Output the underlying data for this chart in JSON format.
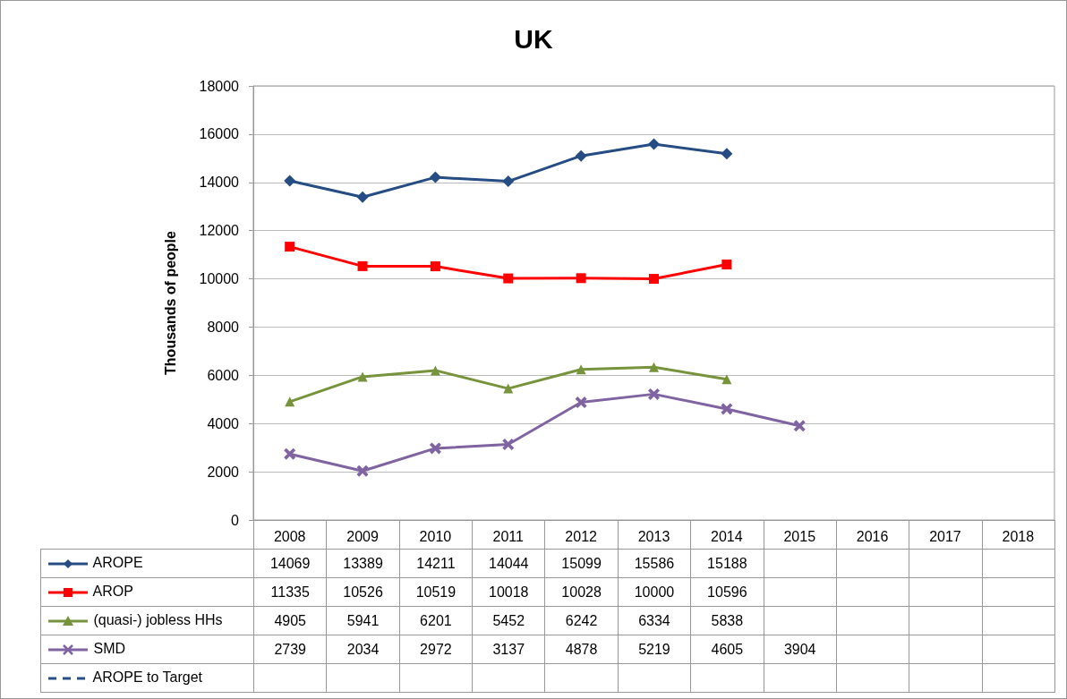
{
  "chart_data": {
    "type": "line",
    "title": "UK",
    "ylabel": "Thousands of people",
    "categories": [
      "2008",
      "2009",
      "2010",
      "2011",
      "2012",
      "2013",
      "2014",
      "2015",
      "2016",
      "2017",
      "2018"
    ],
    "ylim": [
      0,
      18000
    ],
    "yticks": [
      0,
      2000,
      4000,
      6000,
      8000,
      10000,
      12000,
      14000,
      16000,
      18000
    ],
    "grid": "y",
    "legend": "bottom left",
    "data_labels": true,
    "series": [
      {
        "name": "AROPE",
        "color": "#264c84",
        "marker": "diamond",
        "line_style": "solid",
        "values": [
          14069,
          13389,
          14211,
          14044,
          15099,
          15586,
          15188,
          null,
          null,
          null,
          null
        ]
      },
      {
        "name": "AROP",
        "color": "#ff0000",
        "marker": "square",
        "line_style": "solid",
        "values": [
          11335,
          10526,
          10519,
          10018,
          10028,
          10000,
          10596,
          null,
          null,
          null,
          null
        ]
      },
      {
        "name": "(quasi-) jobless HHs",
        "color": "#77933c",
        "marker": "triangle",
        "line_style": "solid",
        "values": [
          4905,
          5941,
          6201,
          5452,
          6242,
          6334,
          5838,
          null,
          null,
          null,
          null
        ]
      },
      {
        "name": "SMD",
        "color": "#8064a2",
        "marker": "cross",
        "line_style": "solid",
        "values": [
          2739,
          2034,
          2972,
          3137,
          4878,
          5219,
          4605,
          3904,
          null,
          null,
          null
        ]
      },
      {
        "name": "AROPE to Target",
        "color": "#264c84",
        "marker": "none",
        "line_style": "dashed",
        "values": [
          null,
          null,
          null,
          null,
          null,
          null,
          null,
          null,
          null,
          null,
          null
        ]
      }
    ]
  }
}
